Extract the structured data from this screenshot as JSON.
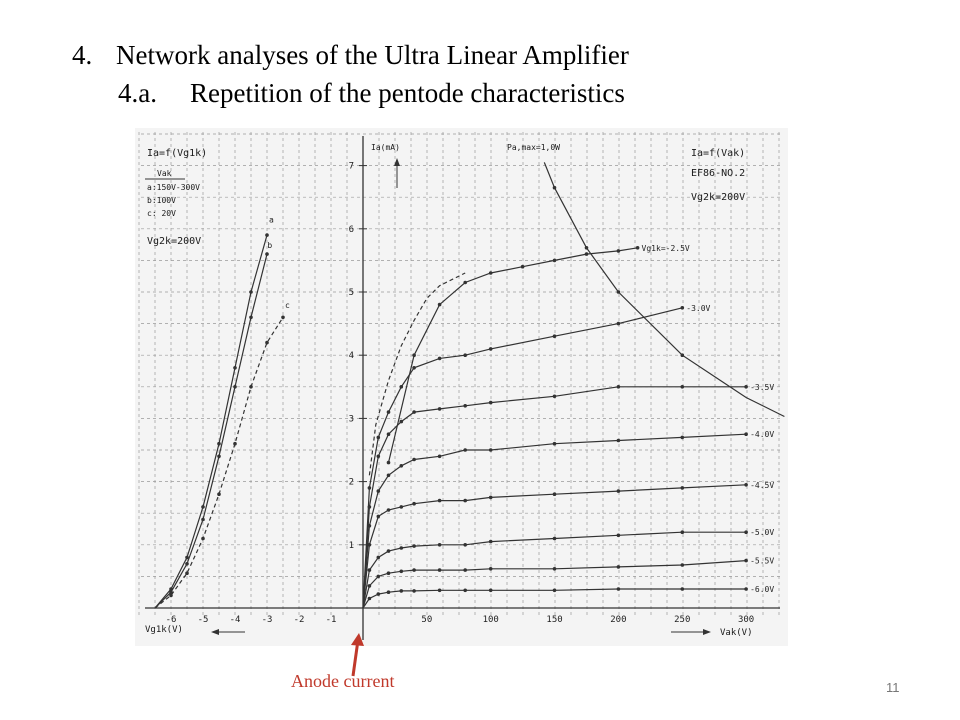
{
  "slide": {
    "heading_number": "4.",
    "heading_text": "Network analyses of the Ultra Linear Amplifier",
    "subheading_number": "4.a.",
    "subheading_text": "Repetition of the pentode characteristics",
    "annotation": "Anode current",
    "page_number": "11"
  },
  "colors": {
    "grid": "#9a9a9a",
    "curve": "#333333",
    "annotation": "#c0392b",
    "paper": "#f4f4f4"
  },
  "chart_data": {
    "type": "line",
    "grid": true,
    "labels": {
      "left_title": "Ia=f(Vg1k)",
      "left_legend_header": "Vak",
      "left_legend": [
        "a:150V-300V",
        "b:100V",
        "c: 20V"
      ],
      "left_vg2": "Vg2k=200V",
      "right_title": "Ia=f(Vak)",
      "tube": "EF86-NO.2",
      "right_vg2": "Vg2k=200V",
      "ylabel": "Ia(mA)",
      "x_left_label": "Vg1k(V)",
      "x_right_label": "Vak(V)",
      "pmax_label": "Pa,max=1,0W"
    },
    "y_ticks": [
      "1",
      "2",
      "3",
      "4",
      "5",
      "6",
      "7"
    ],
    "y_range": [
      0,
      7.5
    ],
    "x_left_ticks": [
      "-6",
      "-5",
      "-4",
      "-3",
      "-2",
      "-1"
    ],
    "x_left_range": [
      -7,
      0
    ],
    "x_right_ticks": [
      "50",
      "100",
      "150",
      "200",
      "250",
      "300"
    ],
    "x_right_range": [
      0,
      320
    ],
    "transfer_curves": [
      {
        "name": "a",
        "dashed": false,
        "points": [
          [
            -6.5,
            0
          ],
          [
            -6,
            0.3
          ],
          [
            -5.5,
            0.8
          ],
          [
            -5,
            1.6
          ],
          [
            -4.5,
            2.6
          ],
          [
            -4,
            3.8
          ],
          [
            -3.5,
            5.0
          ],
          [
            -3,
            5.9
          ]
        ]
      },
      {
        "name": "b",
        "dashed": false,
        "points": [
          [
            -6.5,
            0
          ],
          [
            -6,
            0.25
          ],
          [
            -5.5,
            0.7
          ],
          [
            -5,
            1.4
          ],
          [
            -4.5,
            2.4
          ],
          [
            -4,
            3.5
          ],
          [
            -3.5,
            4.6
          ],
          [
            -3,
            5.6
          ]
        ]
      },
      {
        "name": "c",
        "dashed": true,
        "points": [
          [
            -6.5,
            0
          ],
          [
            -6,
            0.2
          ],
          [
            -5.5,
            0.55
          ],
          [
            -5,
            1.1
          ],
          [
            -4.5,
            1.8
          ],
          [
            -4,
            2.6
          ],
          [
            -3.5,
            3.5
          ],
          [
            -3,
            4.2
          ],
          [
            -2.5,
            4.6
          ]
        ]
      }
    ],
    "output_curves": [
      {
        "name": "Vg1k=-2.5V",
        "label": "Vg1k=-2.5V",
        "points": [
          [
            20,
            2.3
          ],
          [
            40,
            4.0
          ],
          [
            60,
            4.8
          ],
          [
            80,
            5.15
          ],
          [
            100,
            5.3
          ],
          [
            125,
            5.4
          ],
          [
            150,
            5.5
          ],
          [
            175,
            5.6
          ],
          [
            200,
            5.65
          ],
          [
            215,
            5.7
          ]
        ]
      },
      {
        "name": "-3.0V",
        "label": "-3.0V",
        "points": [
          [
            0,
            0
          ],
          [
            5,
            1.9
          ],
          [
            12,
            2.7
          ],
          [
            20,
            3.1
          ],
          [
            30,
            3.5
          ],
          [
            40,
            3.8
          ],
          [
            60,
            3.95
          ],
          [
            80,
            4.0
          ],
          [
            100,
            4.1
          ],
          [
            150,
            4.3
          ],
          [
            200,
            4.5
          ],
          [
            250,
            4.75
          ]
        ]
      },
      {
        "name": "-3.5V",
        "label": "-3.5V",
        "points": [
          [
            0,
            0
          ],
          [
            5,
            1.6
          ],
          [
            12,
            2.4
          ],
          [
            20,
            2.75
          ],
          [
            30,
            2.95
          ],
          [
            40,
            3.1
          ],
          [
            60,
            3.15
          ],
          [
            80,
            3.2
          ],
          [
            100,
            3.25
          ],
          [
            150,
            3.35
          ],
          [
            200,
            3.5
          ],
          [
            250,
            3.5
          ],
          [
            300,
            3.5
          ]
        ]
      },
      {
        "name": "-4.0V",
        "label": "-4.0V",
        "points": [
          [
            0,
            0
          ],
          [
            5,
            1.3
          ],
          [
            12,
            1.85
          ],
          [
            20,
            2.1
          ],
          [
            30,
            2.25
          ],
          [
            40,
            2.35
          ],
          [
            60,
            2.4
          ],
          [
            80,
            2.5
          ],
          [
            100,
            2.5
          ],
          [
            150,
            2.6
          ],
          [
            200,
            2.65
          ],
          [
            250,
            2.7
          ],
          [
            300,
            2.75
          ]
        ]
      },
      {
        "name": "-4.5V",
        "label": "-4.5V",
        "points": [
          [
            0,
            0
          ],
          [
            5,
            1.0
          ],
          [
            12,
            1.45
          ],
          [
            20,
            1.55
          ],
          [
            30,
            1.6
          ],
          [
            40,
            1.65
          ],
          [
            60,
            1.7
          ],
          [
            80,
            1.7
          ],
          [
            100,
            1.75
          ],
          [
            150,
            1.8
          ],
          [
            200,
            1.85
          ],
          [
            250,
            1.9
          ],
          [
            300,
            1.95
          ]
        ]
      },
      {
        "name": "-5.0V",
        "label": "-5.0V",
        "points": [
          [
            0,
            0
          ],
          [
            5,
            0.6
          ],
          [
            12,
            0.8
          ],
          [
            20,
            0.9
          ],
          [
            30,
            0.95
          ],
          [
            40,
            0.98
          ],
          [
            60,
            1.0
          ],
          [
            80,
            1.0
          ],
          [
            100,
            1.05
          ],
          [
            150,
            1.1
          ],
          [
            200,
            1.15
          ],
          [
            250,
            1.2
          ],
          [
            300,
            1.2
          ]
        ]
      },
      {
        "name": "-5.5V",
        "label": "-5.5V",
        "points": [
          [
            0,
            0
          ],
          [
            5,
            0.35
          ],
          [
            12,
            0.5
          ],
          [
            20,
            0.55
          ],
          [
            30,
            0.58
          ],
          [
            40,
            0.6
          ],
          [
            60,
            0.6
          ],
          [
            80,
            0.6
          ],
          [
            100,
            0.62
          ],
          [
            150,
            0.62
          ],
          [
            200,
            0.65
          ],
          [
            250,
            0.68
          ],
          [
            300,
            0.75
          ]
        ]
      },
      {
        "name": "-6.0V",
        "label": "-6.0V",
        "points": [
          [
            0,
            0
          ],
          [
            5,
            0.15
          ],
          [
            12,
            0.22
          ],
          [
            20,
            0.25
          ],
          [
            30,
            0.27
          ],
          [
            40,
            0.27
          ],
          [
            60,
            0.28
          ],
          [
            80,
            0.28
          ],
          [
            100,
            0.28
          ],
          [
            150,
            0.28
          ],
          [
            200,
            0.3
          ],
          [
            250,
            0.3
          ],
          [
            300,
            0.3
          ]
        ]
      }
    ],
    "knee_curve": {
      "dashed": true,
      "points": [
        [
          5,
          2.1
        ],
        [
          10,
          2.9
        ],
        [
          20,
          3.6
        ],
        [
          30,
          4.15
        ],
        [
          40,
          4.55
        ],
        [
          50,
          4.9
        ],
        [
          60,
          5.1
        ],
        [
          80,
          5.3
        ]
      ]
    },
    "pmax_curve": {
      "points": [
        [
          142,
          7.05
        ],
        [
          150,
          6.65
        ],
        [
          175,
          5.7
        ],
        [
          200,
          5.0
        ],
        [
          250,
          4.0
        ],
        [
          300,
          3.33
        ],
        [
          330,
          3.03
        ]
      ]
    }
  }
}
